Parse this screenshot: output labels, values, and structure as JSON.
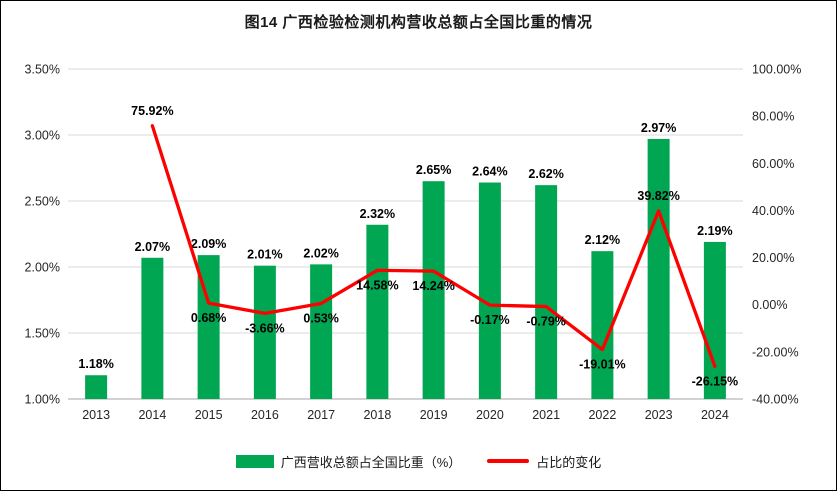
{
  "title": "图14 广西检验检测机构营收总额占全国比重的情况",
  "colors": {
    "bar": "#00A651",
    "line": "#FF0000",
    "grid": "#D9D9D9",
    "axis_line": "#A6A6A6",
    "axis_text": "#262626",
    "label_text": "#000000"
  },
  "chart_data": {
    "type": "bar+line combo",
    "title": "图14 广西检验检测机构营收总额占全国比重的情况",
    "categories": [
      "2013",
      "2014",
      "2015",
      "2016",
      "2017",
      "2018",
      "2019",
      "2020",
      "2021",
      "2022",
      "2023",
      "2024"
    ],
    "series": [
      {
        "name": "广西营收总额占全国比重（%）",
        "type": "bar",
        "axis": "left",
        "values": [
          1.18,
          2.07,
          2.09,
          2.01,
          2.02,
          2.32,
          2.65,
          2.64,
          2.62,
          2.12,
          2.97,
          2.19
        ],
        "labels": [
          "1.18%",
          "2.07%",
          "2.09%",
          "2.01%",
          "2.02%",
          "2.32%",
          "2.65%",
          "2.64%",
          "2.62%",
          "2.12%",
          "2.97%",
          "2.19%"
        ]
      },
      {
        "name": "占比的变化",
        "type": "line",
        "axis": "right",
        "values": [
          null,
          75.92,
          0.68,
          -3.66,
          0.53,
          14.58,
          14.24,
          -0.17,
          -0.79,
          -19.01,
          39.82,
          -26.15
        ],
        "labels": [
          null,
          "75.92%",
          "0.68%",
          "-3.66%",
          "0.53%",
          "14.58%",
          "14.24%",
          "-0.17%",
          "-0.79%",
          "-19.01%",
          "39.82%",
          "-26.15%"
        ]
      }
    ],
    "left_axis": {
      "min": 1.0,
      "max": 3.5,
      "step": 0.5,
      "ticks": [
        "1.00%",
        "1.50%",
        "2.00%",
        "2.50%",
        "3.00%",
        "3.50%"
      ]
    },
    "right_axis": {
      "min": -40,
      "max": 100,
      "step": 20,
      "ticks": [
        "-40.00%",
        "-20.00%",
        "0.00%",
        "20.00%",
        "40.00%",
        "60.00%",
        "80.00%",
        "100.00%"
      ]
    },
    "grid": "horizontal only",
    "legend_position": "bottom",
    "legend": [
      {
        "label": "广西营收总额占全国比重（%）",
        "marker": "bar"
      },
      {
        "label": "占比的变化",
        "marker": "line"
      }
    ]
  }
}
